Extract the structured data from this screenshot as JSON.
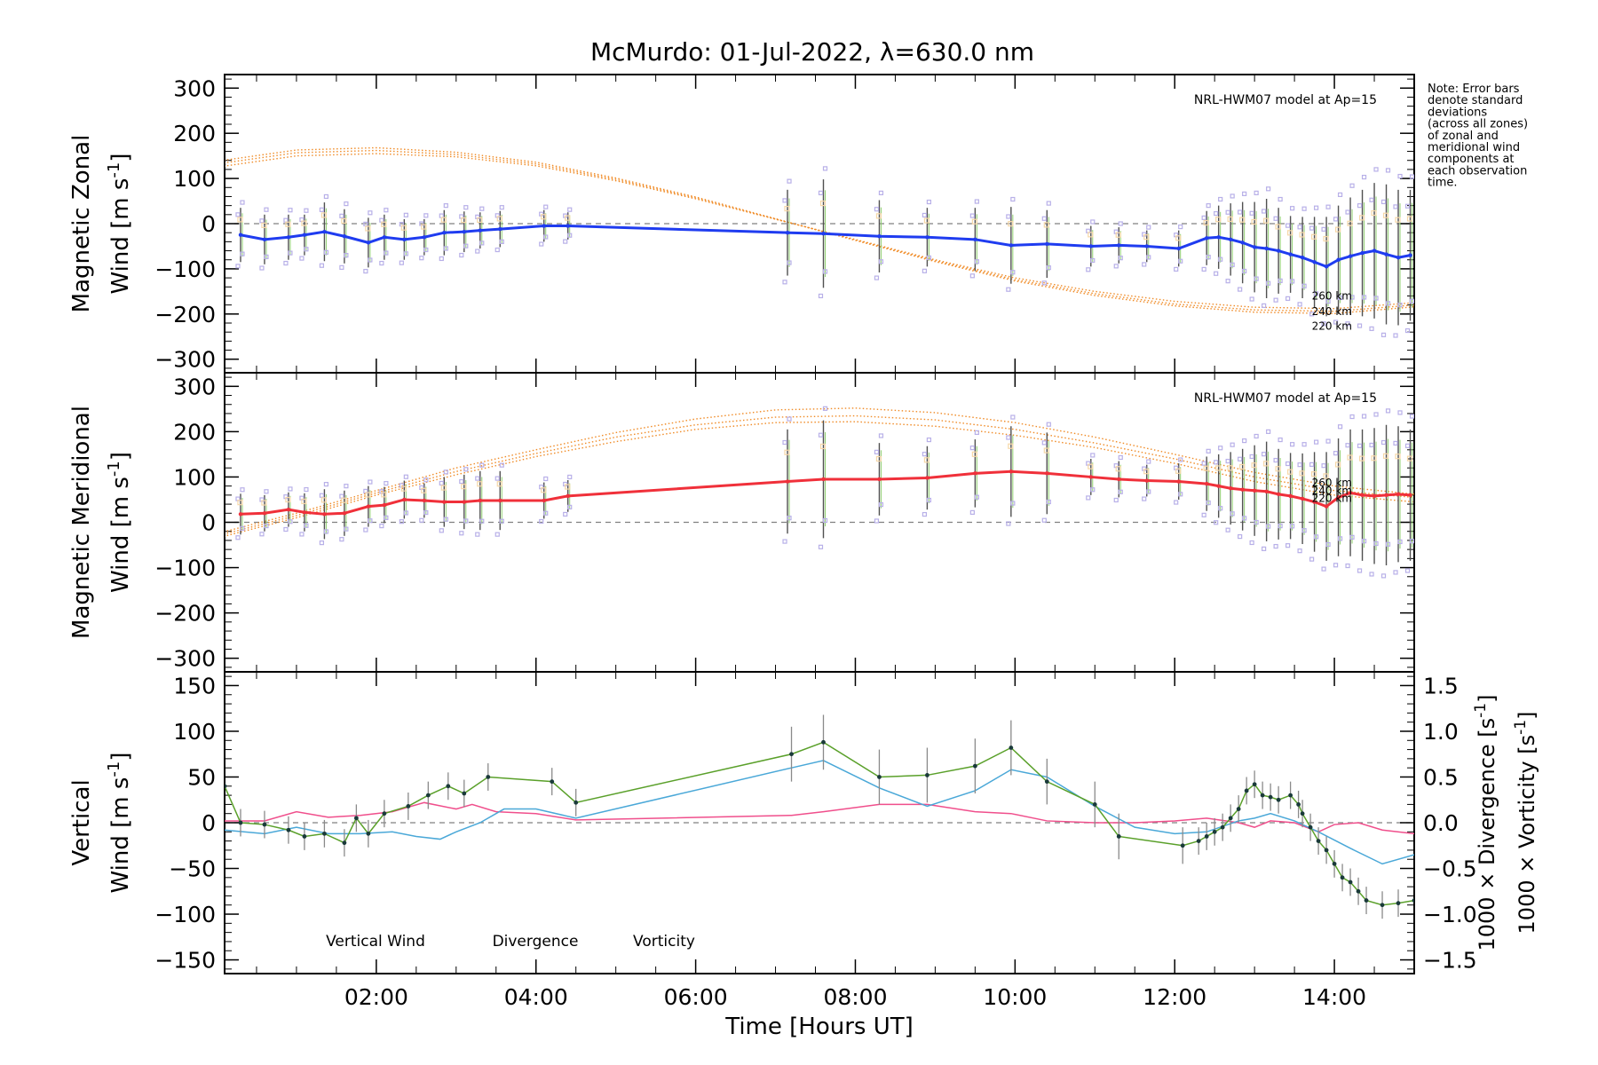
{
  "title": "McMurdo: 01-Jul-2022, λ=630.0 nm",
  "note": [
    "Note: Error bars",
    "denote standard",
    "deviations",
    "(across all zones)",
    "of zonal and",
    "meridional wind",
    "components at",
    "each observation",
    "time."
  ],
  "colors": {
    "zonal": "#1f3cf0",
    "meridional": "#f0303a",
    "model": "#f08c28",
    "vertical": "#5aa02a",
    "divergence": "#4aa8d8",
    "vorticity": "#f04f8c",
    "scatter": "#b8b0e8",
    "errorbar": "#505050",
    "zero": "#808080"
  },
  "chart_data": [
    {
      "type": "line",
      "panel": "zonal",
      "ylabel_top": "Magnetic Zonal",
      "ylabel_bottom": "Wind [m s",
      "ylabel_sup": "-1",
      "ylabel_end": "]",
      "ylim": [
        -330,
        330
      ],
      "yticks": [
        300,
        200,
        100,
        0,
        -100,
        -200,
        -300
      ],
      "model_label": "NRL-HWM07 model at Ap=15",
      "model_altitude_labels": [
        "260 km",
        "240 km",
        "220 km"
      ],
      "model_series": [
        {
          "x": [
            0.0,
            1.0,
            2.0,
            3.0,
            4.0,
            5.0,
            6.0,
            7.0,
            8.0,
            9.0,
            10.0,
            11.0,
            12.0,
            13.0,
            14.0,
            15.0
          ],
          "values": [
            125,
            150,
            155,
            148,
            128,
            95,
            55,
            10,
            -35,
            -80,
            -120,
            -150,
            -172,
            -185,
            -188,
            -175
          ]
        },
        {
          "x": [
            0.0,
            1.0,
            2.0,
            3.0,
            4.0,
            5.0,
            6.0,
            7.0,
            8.0,
            9.0,
            10.0,
            11.0,
            12.0,
            13.0,
            14.0,
            15.0
          ],
          "values": [
            132,
            157,
            162,
            153,
            132,
            98,
            57,
            10,
            -36,
            -82,
            -124,
            -155,
            -178,
            -191,
            -194,
            -180
          ]
        },
        {
          "x": [
            0.0,
            1.0,
            2.0,
            3.0,
            4.0,
            5.0,
            6.0,
            7.0,
            8.0,
            9.0,
            10.0,
            11.0,
            12.0,
            13.0,
            14.0,
            15.0
          ],
          "values": [
            138,
            163,
            168,
            158,
            136,
            101,
            59,
            11,
            -37,
            -84,
            -127,
            -159,
            -182,
            -196,
            -199,
            -184
          ]
        }
      ],
      "x": [
        0.3,
        0.6,
        0.9,
        1.1,
        1.35,
        1.6,
        1.9,
        2.1,
        2.35,
        2.6,
        2.85,
        3.1,
        3.3,
        3.55,
        4.1,
        4.4,
        7.15,
        7.6,
        8.3,
        8.9,
        9.5,
        9.95,
        10.4,
        10.95,
        11.3,
        11.65,
        12.05,
        12.4,
        12.55,
        12.7,
        12.85,
        13.0,
        13.15,
        13.3,
        13.45,
        13.6,
        13.75,
        13.9,
        14.05,
        14.2,
        14.35,
        14.5,
        14.65,
        14.8,
        14.95
      ],
      "values": [
        -25,
        -35,
        -30,
        -25,
        -18,
        -28,
        -42,
        -30,
        -35,
        -30,
        -20,
        -18,
        -15,
        -12,
        -5,
        -5,
        -20,
        -22,
        -28,
        -30,
        -35,
        -48,
        -45,
        -50,
        -48,
        -50,
        -55,
        -32,
        -30,
        -35,
        -42,
        -52,
        -55,
        -60,
        -68,
        -75,
        -85,
        -95,
        -80,
        -72,
        -65,
        -60,
        -68,
        -75,
        -70
      ],
      "errors": [
        60,
        55,
        50,
        45,
        65,
        60,
        55,
        50,
        45,
        40,
        50,
        45,
        40,
        40,
        35,
        30,
        95,
        120,
        80,
        65,
        70,
        85,
        75,
        45,
        40,
        35,
        40,
        60,
        70,
        80,
        90,
        100,
        110,
        95,
        85,
        90,
        100,
        110,
        120,
        130,
        140,
        150,
        155,
        150,
        145
      ]
    },
    {
      "type": "line",
      "panel": "meridional",
      "ylabel_top": "Magnetic Meridional",
      "ylabel_bottom": "Wind [m s",
      "ylabel_sup": "-1",
      "ylabel_end": "]",
      "ylim": [
        -330,
        330
      ],
      "yticks": [
        300,
        200,
        100,
        0,
        -100,
        -200,
        -300
      ],
      "model_label": "NRL-HWM07 model at Ap=15",
      "model_altitude_labels": [
        "260 km",
        "240 km",
        "220 km"
      ],
      "model_series": [
        {
          "x": [
            0.0,
            1.0,
            2.0,
            3.0,
            4.0,
            5.0,
            6.0,
            7.0,
            8.0,
            9.0,
            10.0,
            11.0,
            12.0,
            13.0,
            14.0,
            15.0
          ],
          "values": [
            -35,
            10,
            60,
            105,
            145,
            178,
            205,
            220,
            222,
            212,
            192,
            165,
            130,
            90,
            60,
            45
          ]
        },
        {
          "x": [
            0.0,
            1.0,
            2.0,
            3.0,
            4.0,
            5.0,
            6.0,
            7.0,
            8.0,
            9.0,
            10.0,
            11.0,
            12.0,
            13.0,
            14.0,
            15.0
          ],
          "values": [
            -30,
            15,
            65,
            112,
            152,
            188,
            215,
            232,
            235,
            226,
            205,
            175,
            140,
            100,
            70,
            55
          ]
        },
        {
          "x": [
            0.0,
            1.0,
            2.0,
            3.0,
            4.0,
            5.0,
            6.0,
            7.0,
            8.0,
            9.0,
            10.0,
            11.0,
            12.0,
            13.0,
            14.0,
            15.0
          ],
          "values": [
            -25,
            20,
            70,
            120,
            160,
            198,
            228,
            248,
            252,
            242,
            220,
            188,
            150,
            110,
            80,
            62
          ]
        }
      ],
      "x": [
        0.3,
        0.6,
        0.9,
        1.1,
        1.35,
        1.6,
        1.9,
        2.1,
        2.35,
        2.6,
        2.85,
        3.1,
        3.3,
        3.55,
        4.1,
        4.4,
        7.15,
        7.6,
        8.3,
        8.9,
        9.5,
        9.95,
        10.4,
        10.95,
        11.3,
        11.65,
        12.05,
        12.4,
        12.55,
        12.7,
        12.85,
        13.0,
        13.15,
        13.3,
        13.45,
        13.6,
        13.75,
        13.9,
        14.05,
        14.2,
        14.35,
        14.5,
        14.65,
        14.8,
        14.95
      ],
      "values": [
        18,
        20,
        28,
        22,
        18,
        20,
        35,
        38,
        50,
        48,
        45,
        45,
        48,
        48,
        48,
        58,
        90,
        95,
        95,
        98,
        108,
        112,
        108,
        100,
        95,
        92,
        90,
        85,
        80,
        75,
        72,
        70,
        68,
        62,
        58,
        52,
        45,
        35,
        55,
        65,
        60,
        58,
        60,
        62,
        60
      ],
      "errors": [
        45,
        40,
        38,
        42,
        55,
        50,
        45,
        40,
        42,
        38,
        55,
        60,
        65,
        65,
        40,
        35,
        115,
        130,
        80,
        70,
        75,
        100,
        90,
        40,
        40,
        35,
        40,
        60,
        70,
        80,
        90,
        100,
        110,
        100,
        95,
        100,
        110,
        120,
        130,
        140,
        145,
        150,
        155,
        150,
        145
      ]
    },
    {
      "type": "line",
      "panel": "vertical",
      "ylabel_top": "Vertical",
      "ylabel_bottom": "Wind [m s",
      "ylabel_sup": "-1",
      "ylabel_end": "]",
      "ylim": [
        -165,
        165
      ],
      "yticks": [
        150,
        100,
        50,
        0,
        -50,
        -100,
        -150
      ],
      "y2lim": [
        -1.65,
        1.65
      ],
      "y2ticks": [
        "1.5",
        "1.0",
        "0.5",
        "0.0",
        "-0.5",
        "-1.0",
        "-1.5"
      ],
      "y2label_div": "1000 × Divergence [s",
      "y2label_vor": "1000 × Vorticity [s",
      "y2label_sup": "-1",
      "y2label_end": "]",
      "xlabel": "Time [Hours UT]",
      "xlim": [
        0.1,
        15.0
      ],
      "xtick_labels": [
        "02:00",
        "04:00",
        "06:00",
        "08:00",
        "10:00",
        "12:00",
        "14:00"
      ],
      "xtick_values": [
        2,
        4,
        6,
        8,
        10,
        12,
        14
      ],
      "legend": [
        "Vertical Wind",
        "Divergence",
        "Vorticity"
      ],
      "series": [
        {
          "name": "Vertical Wind",
          "x": [
            0.1,
            0.3,
            0.6,
            0.9,
            1.1,
            1.35,
            1.6,
            1.75,
            1.9,
            2.1,
            2.4,
            2.65,
            2.9,
            3.1,
            3.4,
            4.2,
            4.5,
            7.2,
            7.6,
            8.3,
            8.9,
            9.5,
            9.95,
            10.4,
            11.0,
            11.3,
            12.1,
            12.3,
            12.4,
            12.5,
            12.6,
            12.7,
            12.8,
            12.9,
            13.0,
            13.1,
            13.2,
            13.3,
            13.45,
            13.55,
            13.6,
            13.7,
            13.8,
            13.9,
            14.0,
            14.1,
            14.2,
            14.3,
            14.4,
            14.6,
            14.8,
            15.0
          ],
          "values": [
            40,
            0,
            -2,
            -8,
            -15,
            -12,
            -22,
            5,
            -12,
            10,
            18,
            30,
            40,
            32,
            50,
            45,
            22,
            75,
            88,
            50,
            52,
            62,
            82,
            45,
            20,
            -15,
            -25,
            -20,
            -15,
            -10,
            -5,
            5,
            15,
            35,
            42,
            30,
            28,
            25,
            30,
            20,
            10,
            -5,
            -20,
            -30,
            -45,
            -60,
            -65,
            -75,
            -85,
            -90,
            -88,
            -85
          ],
          "errors": [
            0,
            15,
            15,
            15,
            15,
            15,
            15,
            15,
            15,
            15,
            15,
            15,
            15,
            15,
            15,
            15,
            15,
            30,
            30,
            30,
            30,
            30,
            30,
            25,
            25,
            25,
            20,
            15,
            15,
            15,
            15,
            15,
            15,
            15,
            15,
            15,
            15,
            15,
            15,
            15,
            15,
            15,
            15,
            15,
            15,
            15,
            15,
            15,
            15,
            15,
            15,
            0
          ]
        },
        {
          "name": "Divergence",
          "x": [
            0.1,
            0.6,
            1.0,
            1.4,
            1.8,
            2.2,
            2.5,
            2.8,
            3.0,
            3.3,
            3.6,
            4.0,
            4.5,
            7.2,
            7.6,
            8.3,
            8.9,
            9.5,
            9.95,
            10.4,
            11.0,
            11.5,
            12.0,
            12.4,
            12.8,
            13.0,
            13.2,
            13.5,
            13.8,
            14.2,
            14.6,
            15.0
          ],
          "values": [
            -0.08,
            -0.12,
            -0.05,
            -0.12,
            -0.12,
            -0.1,
            -0.15,
            -0.18,
            -0.1,
            0.0,
            0.15,
            0.15,
            0.05,
            0.6,
            0.68,
            0.38,
            0.18,
            0.35,
            0.58,
            0.5,
            0.18,
            -0.05,
            -0.12,
            -0.1,
            0.02,
            0.05,
            0.1,
            0.02,
            -0.1,
            -0.28,
            -0.45,
            -0.35
          ]
        },
        {
          "name": "Vorticity",
          "x": [
            0.1,
            0.6,
            1.0,
            1.4,
            1.8,
            2.2,
            2.6,
            3.0,
            3.2,
            3.5,
            4.0,
            4.5,
            7.2,
            7.6,
            8.3,
            8.9,
            9.5,
            9.95,
            10.4,
            11.0,
            11.5,
            12.0,
            12.4,
            12.8,
            13.0,
            13.2,
            13.5,
            13.8,
            14.0,
            14.3,
            14.6,
            15.0
          ],
          "values": [
            0.02,
            0.02,
            0.12,
            0.06,
            0.08,
            0.12,
            0.22,
            0.15,
            0.2,
            0.12,
            0.1,
            0.03,
            0.08,
            0.12,
            0.2,
            0.2,
            0.12,
            0.1,
            0.02,
            0.0,
            0.0,
            0.02,
            0.05,
            0.0,
            -0.05,
            0.02,
            0.0,
            -0.1,
            -0.02,
            0.0,
            -0.08,
            -0.12
          ]
        }
      ]
    }
  ]
}
